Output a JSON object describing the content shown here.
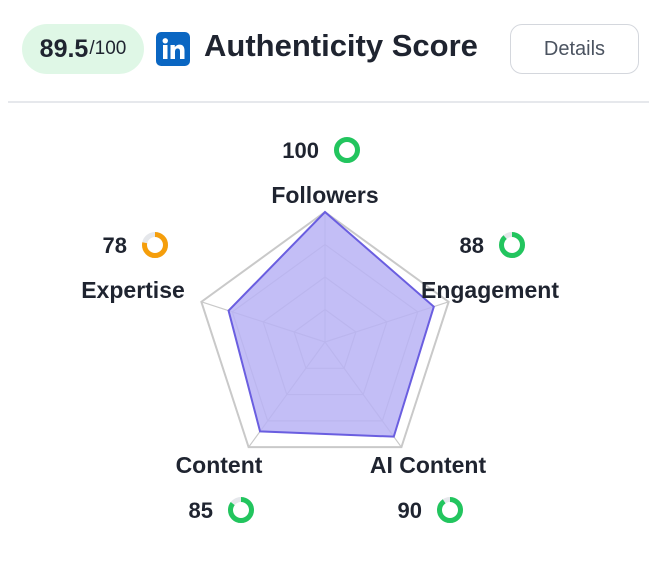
{
  "header": {
    "score_value": "89.5",
    "score_max": "/100",
    "title": "Authenticity Score",
    "details_label": "Details",
    "platform_icon": "linkedin-icon",
    "platform_color": "#0a66c2"
  },
  "colors": {
    "badge_bg": "#dff7e6",
    "good": "#22c55e",
    "warning": "#f59e0b",
    "ring_track": "#e5e7eb",
    "radar_fill": "#b8b3f5",
    "radar_stroke": "#6a5ee0",
    "grid": "#c9c9c9"
  },
  "chart_data": {
    "type": "radar",
    "max": 100,
    "axes": [
      {
        "label": "Followers",
        "value": 100,
        "status": "good"
      },
      {
        "label": "Engagement",
        "value": 88,
        "status": "good"
      },
      {
        "label": "AI Content",
        "value": 90,
        "status": "good"
      },
      {
        "label": "Content",
        "value": 85,
        "status": "good"
      },
      {
        "label": "Expertise",
        "value": 78,
        "status": "warning"
      }
    ]
  }
}
